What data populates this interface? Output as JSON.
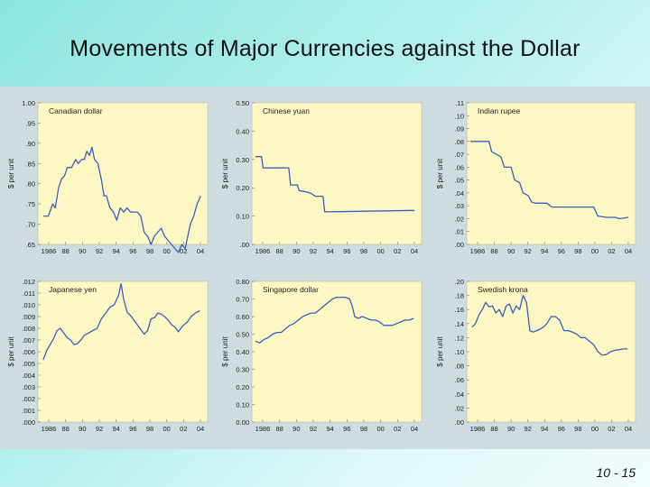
{
  "slide": {
    "title": "Movements of Major Currencies against the Dollar",
    "page_number": "10 - 15"
  },
  "chart_data": [
    {
      "type": "line",
      "title": "Canadian dollar",
      "ylabel": "$ per unit",
      "yticks": [
        ".65",
        ".70",
        ".75",
        ".80",
        ".85",
        ".90",
        ".95",
        "1.00"
      ],
      "ylim": [
        0.65,
        1.0
      ],
      "xticks": [
        "1986",
        "88",
        "90",
        "92",
        "94",
        "96",
        "98",
        "00",
        "02",
        "04"
      ],
      "xlim": [
        1986,
        2005
      ],
      "x": [
        1986.2,
        1986.8,
        1987.3,
        1987.6,
        1988,
        1988.3,
        1988.7,
        1989,
        1989.5,
        1990,
        1990.3,
        1990.7,
        1991,
        1991.3,
        1991.6,
        1991.9,
        1992.2,
        1992.6,
        1993,
        1993.3,
        1993.6,
        1994,
        1994.4,
        1994.8,
        1995.2,
        1995.6,
        1996,
        1996.4,
        1996.8,
        1997.2,
        1997.6,
        1998,
        1998.4,
        1998.8,
        1999.2,
        1999.6,
        2000,
        2000.4,
        2000.8,
        2001.2,
        2001.6,
        2002,
        2002.4,
        2002.8,
        2003,
        2003.4,
        2003.8,
        2004.2,
        2004.6
      ],
      "y": [
        0.72,
        0.72,
        0.75,
        0.74,
        0.79,
        0.81,
        0.82,
        0.84,
        0.84,
        0.86,
        0.85,
        0.86,
        0.86,
        0.88,
        0.87,
        0.89,
        0.86,
        0.85,
        0.81,
        0.77,
        0.77,
        0.74,
        0.73,
        0.71,
        0.74,
        0.73,
        0.74,
        0.73,
        0.73,
        0.73,
        0.72,
        0.68,
        0.67,
        0.65,
        0.67,
        0.68,
        0.69,
        0.67,
        0.66,
        0.65,
        0.64,
        0.63,
        0.65,
        0.64,
        0.66,
        0.7,
        0.72,
        0.75,
        0.77
      ]
    },
    {
      "type": "line",
      "title": "Chinese yuan",
      "ylabel": "$ per unit",
      "yticks": [
        ".00",
        "0.10",
        "0.20",
        "0.30",
        "0.40",
        "0.50"
      ],
      "ylim": [
        0,
        0.5
      ],
      "xticks": [
        "1986",
        "88",
        "90",
        "92",
        "94",
        "96",
        "98",
        "00",
        "02",
        "04"
      ],
      "xlim": [
        1986,
        2005
      ],
      "x": [
        1986,
        1986.7,
        1986.9,
        1989.9,
        1990.1,
        1990.9,
        1991.1,
        1992,
        1992.5,
        1993,
        1993.5,
        1993.9,
        1994.1,
        2004.6
      ],
      "y": [
        0.31,
        0.31,
        0.27,
        0.27,
        0.21,
        0.21,
        0.19,
        0.185,
        0.18,
        0.17,
        0.17,
        0.17,
        0.115,
        0.12
      ]
    },
    {
      "type": "line",
      "title": "Indian rupee",
      "ylabel": "$ per unit",
      "yticks": [
        ".00",
        ".01",
        ".02",
        ".03",
        ".04",
        ".05",
        ".06",
        ".07",
        ".08",
        ".09",
        ".10",
        ".11"
      ],
      "ylim": [
        0,
        0.11
      ],
      "xticks": [
        "1986",
        "88",
        "90",
        "92",
        "94",
        "96",
        "98",
        "00",
        "02",
        "04"
      ],
      "xlim": [
        1986,
        2005
      ],
      "x": [
        1986,
        1988.2,
        1988.5,
        1989.6,
        1990,
        1990.8,
        1991.2,
        1991.8,
        1992.2,
        1992.8,
        1993.2,
        1993.6,
        1995,
        1995.6,
        2000.5,
        2001,
        2002,
        2003,
        2003.5,
        2004.6
      ],
      "y": [
        0.08,
        0.08,
        0.072,
        0.068,
        0.06,
        0.06,
        0.05,
        0.048,
        0.04,
        0.038,
        0.033,
        0.032,
        0.032,
        0.029,
        0.029,
        0.022,
        0.021,
        0.021,
        0.02,
        0.021
      ]
    },
    {
      "type": "line",
      "title": "Japanese yen",
      "ylabel": "$ per unit",
      "yticks": [
        ".000",
        ".001",
        ".002",
        ".003",
        ".004",
        ".005",
        ".006",
        ".007",
        ".008",
        ".009",
        ".010",
        ".011",
        ".012"
      ],
      "ylim": [
        0,
        0.012
      ],
      "xticks": [
        "1986",
        "88",
        "90",
        "92",
        "94",
        "96",
        "98",
        "00",
        "02",
        "04"
      ],
      "xlim": [
        1986,
        2005
      ],
      "x": [
        1986.2,
        1986.6,
        1987,
        1987.4,
        1987.8,
        1988.2,
        1988.6,
        1989,
        1989.4,
        1989.8,
        1990.2,
        1990.6,
        1991,
        1991.5,
        1992,
        1992.5,
        1993,
        1993.5,
        1994,
        1994.5,
        1995,
        1995.3,
        1995.6,
        1996,
        1996.5,
        1997,
        1997.5,
        1998,
        1998.4,
        1998.8,
        1999.2,
        1999.6,
        2000,
        2000.4,
        2000.8,
        2001.2,
        2001.6,
        2002,
        2002.5,
        2003,
        2003.5,
        2004,
        2004.5
      ],
      "y": [
        0.0053,
        0.0061,
        0.0066,
        0.0071,
        0.0078,
        0.008,
        0.0076,
        0.0072,
        0.007,
        0.0066,
        0.0067,
        0.007,
        0.0074,
        0.0076,
        0.0078,
        0.008,
        0.0088,
        0.0093,
        0.0098,
        0.01,
        0.0108,
        0.0118,
        0.0105,
        0.0094,
        0.009,
        0.0085,
        0.008,
        0.0075,
        0.0078,
        0.0088,
        0.0089,
        0.0093,
        0.0092,
        0.009,
        0.0087,
        0.0083,
        0.0081,
        0.0077,
        0.0082,
        0.0085,
        0.009,
        0.0093,
        0.0095
      ]
    },
    {
      "type": "line",
      "title": "Singapore dollar",
      "ylabel": "$ per unit",
      "yticks": [
        "0.00",
        "0.10",
        "0.20",
        "0.30",
        "0.40",
        "0.50",
        "0.60",
        "0.70",
        "0.80"
      ],
      "ylim": [
        0,
        0.8
      ],
      "xticks": [
        "1986",
        "88",
        "90",
        "92",
        "94",
        "96",
        "98",
        "00",
        "02",
        "04"
      ],
      "xlim": [
        1986,
        2005
      ],
      "x": [
        1986,
        1986.5,
        1987,
        1987.5,
        1988,
        1988.5,
        1989,
        1989.5,
        1990,
        1990.5,
        1991,
        1991.5,
        1992,
        1992.5,
        1993,
        1993.5,
        1994,
        1994.5,
        1995,
        1995.5,
        1996,
        1996.5,
        1997,
        1997.3,
        1997.6,
        1998,
        1998.5,
        1999,
        1999.5,
        2000,
        2000.5,
        2001,
        2001.5,
        2002,
        2002.5,
        2003,
        2003.5,
        2004,
        2004.5
      ],
      "y": [
        0.46,
        0.45,
        0.47,
        0.48,
        0.5,
        0.51,
        0.51,
        0.53,
        0.55,
        0.56,
        0.58,
        0.6,
        0.61,
        0.62,
        0.62,
        0.64,
        0.66,
        0.68,
        0.7,
        0.71,
        0.71,
        0.71,
        0.7,
        0.66,
        0.6,
        0.59,
        0.6,
        0.59,
        0.58,
        0.58,
        0.57,
        0.55,
        0.55,
        0.55,
        0.56,
        0.57,
        0.58,
        0.58,
        0.59
      ]
    },
    {
      "type": "line",
      "title": "Swedish krona",
      "ylabel": "$ per unit",
      "yticks": [
        ".00",
        ".02",
        ".04",
        ".06",
        ".08",
        ".10",
        ".12",
        ".14",
        ".16",
        ".18",
        ".20"
      ],
      "ylim": [
        0,
        0.2
      ],
      "xticks": [
        "1986",
        "88",
        "90",
        "92",
        "94",
        "96",
        "98",
        "00",
        "02",
        "04"
      ],
      "xlim": [
        1986,
        2005
      ],
      "x": [
        1986.2,
        1986.6,
        1987,
        1987.4,
        1987.8,
        1988.2,
        1988.6,
        1989,
        1989.4,
        1989.8,
        1990.2,
        1990.6,
        1991,
        1991.4,
        1991.8,
        1992.2,
        1992.6,
        1993,
        1993.4,
        1993.8,
        1994.2,
        1994.6,
        1995,
        1995.5,
        1996,
        1996.5,
        1997,
        1997.5,
        1998,
        1998.5,
        1999,
        1999.5,
        2000,
        2000.5,
        2001,
        2001.5,
        2002,
        2002.5,
        2003,
        2003.5,
        2004,
        2004.5
      ],
      "y": [
        0.135,
        0.14,
        0.152,
        0.16,
        0.17,
        0.164,
        0.165,
        0.155,
        0.16,
        0.15,
        0.165,
        0.168,
        0.155,
        0.165,
        0.16,
        0.18,
        0.17,
        0.13,
        0.128,
        0.13,
        0.132,
        0.135,
        0.14,
        0.15,
        0.15,
        0.145,
        0.13,
        0.13,
        0.128,
        0.125,
        0.12,
        0.12,
        0.115,
        0.11,
        0.1,
        0.095,
        0.096,
        0.1,
        0.102,
        0.103,
        0.104,
        0.104
      ]
    }
  ]
}
